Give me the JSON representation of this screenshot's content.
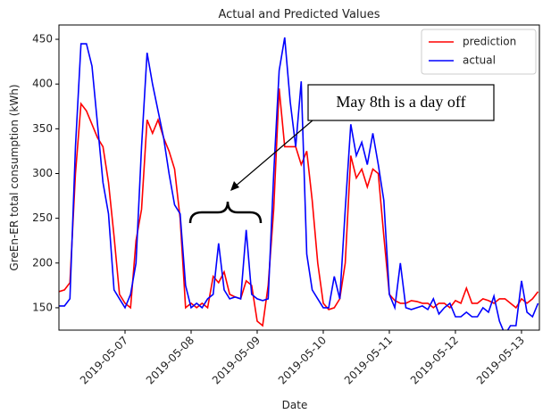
{
  "chart_data": {
    "type": "line",
    "title": "Actual and Predicted Values",
    "x_label": "Date",
    "y_label": "GreEn-ER total consumption (kWh)",
    "annotation": "May 8th is a day off",
    "x": [
      "2019-05-06 00:00",
      "2019-05-06 02:00",
      "2019-05-06 04:00",
      "2019-05-06 06:00",
      "2019-05-06 08:00",
      "2019-05-06 10:00",
      "2019-05-06 12:00",
      "2019-05-06 14:00",
      "2019-05-06 16:00",
      "2019-05-06 18:00",
      "2019-05-06 20:00",
      "2019-05-06 22:00",
      "2019-05-07 00:00",
      "2019-05-07 02:00",
      "2019-05-07 04:00",
      "2019-05-07 06:00",
      "2019-05-07 08:00",
      "2019-05-07 10:00",
      "2019-05-07 12:00",
      "2019-05-07 14:00",
      "2019-05-07 16:00",
      "2019-05-07 18:00",
      "2019-05-07 20:00",
      "2019-05-07 22:00",
      "2019-05-08 00:00",
      "2019-05-08 02:00",
      "2019-05-08 04:00",
      "2019-05-08 06:00",
      "2019-05-08 08:00",
      "2019-05-08 10:00",
      "2019-05-08 12:00",
      "2019-05-08 14:00",
      "2019-05-08 16:00",
      "2019-05-08 18:00",
      "2019-05-08 20:00",
      "2019-05-08 22:00",
      "2019-05-09 00:00",
      "2019-05-09 02:00",
      "2019-05-09 04:00",
      "2019-05-09 06:00",
      "2019-05-09 08:00",
      "2019-05-09 10:00",
      "2019-05-09 12:00",
      "2019-05-09 14:00",
      "2019-05-09 16:00",
      "2019-05-09 18:00",
      "2019-05-09 20:00",
      "2019-05-09 22:00",
      "2019-05-10 00:00",
      "2019-05-10 02:00",
      "2019-05-10 04:00",
      "2019-05-10 06:00",
      "2019-05-10 08:00",
      "2019-05-10 10:00",
      "2019-05-10 12:00",
      "2019-05-10 14:00",
      "2019-05-10 16:00",
      "2019-05-10 18:00",
      "2019-05-10 20:00",
      "2019-05-10 22:00",
      "2019-05-11 00:00",
      "2019-05-11 02:00",
      "2019-05-11 04:00",
      "2019-05-11 06:00",
      "2019-05-11 08:00",
      "2019-05-11 10:00",
      "2019-05-11 12:00",
      "2019-05-11 14:00",
      "2019-05-11 16:00",
      "2019-05-11 18:00",
      "2019-05-11 20:00",
      "2019-05-11 22:00",
      "2019-05-12 00:00",
      "2019-05-12 02:00",
      "2019-05-12 04:00",
      "2019-05-12 06:00",
      "2019-05-12 08:00",
      "2019-05-12 10:00",
      "2019-05-12 12:00",
      "2019-05-12 14:00",
      "2019-05-12 16:00",
      "2019-05-12 18:00",
      "2019-05-12 20:00",
      "2019-05-12 22:00",
      "2019-05-13 00:00",
      "2019-05-13 02:00",
      "2019-05-13 04:00",
      "2019-05-13 06:00"
    ],
    "series": [
      {
        "name": "prediction",
        "color": "#ff0000",
        "values": [
          168,
          170,
          178,
          300,
          378,
          370,
          355,
          340,
          330,
          290,
          230,
          165,
          155,
          150,
          225,
          260,
          360,
          345,
          360,
          340,
          325,
          305,
          250,
          150,
          155,
          150,
          155,
          150,
          185,
          178,
          190,
          165,
          162,
          160,
          180,
          175,
          135,
          130,
          175,
          260,
          395,
          330,
          330,
          330,
          310,
          325,
          270,
          200,
          155,
          148,
          150,
          160,
          200,
          320,
          295,
          305,
          285,
          305,
          300,
          230,
          165,
          158,
          155,
          155,
          158,
          157,
          155,
          155,
          150,
          155,
          155,
          150,
          158,
          155,
          172,
          155,
          155,
          160,
          158,
          155,
          160,
          160,
          155,
          150,
          160,
          155,
          160,
          168
        ]
      },
      {
        "name": "actual",
        "color": "#0000ff",
        "values": [
          152,
          152,
          160,
          330,
          445,
          445,
          420,
          355,
          290,
          255,
          170,
          160,
          150,
          165,
          200,
          330,
          435,
          400,
          370,
          340,
          300,
          265,
          255,
          175,
          150,
          155,
          150,
          160,
          165,
          222,
          170,
          160,
          162,
          160,
          237,
          165,
          160,
          158,
          160,
          300,
          415,
          452,
          380,
          330,
          403,
          210,
          170,
          160,
          150,
          150,
          185,
          160,
          260,
          355,
          320,
          335,
          310,
          345,
          310,
          270,
          165,
          150,
          200,
          150,
          148,
          150,
          152,
          148,
          160,
          143,
          150,
          155,
          140,
          140,
          145,
          140,
          140,
          150,
          145,
          163,
          135,
          120,
          130,
          130,
          180,
          145,
          140,
          155
        ]
      }
    ],
    "xlim": [
      "2019-05-06 00:00",
      "2019-05-13 06:30"
    ],
    "xticks": [
      "2019-05-07",
      "2019-05-08",
      "2019-05-09",
      "2019-05-10",
      "2019-05-11",
      "2019-05-12",
      "2019-05-13"
    ],
    "ylim": [
      125,
      466
    ],
    "yticks": [
      150,
      200,
      250,
      300,
      350,
      400,
      450
    ],
    "legend": "upper right",
    "grid": false
  }
}
